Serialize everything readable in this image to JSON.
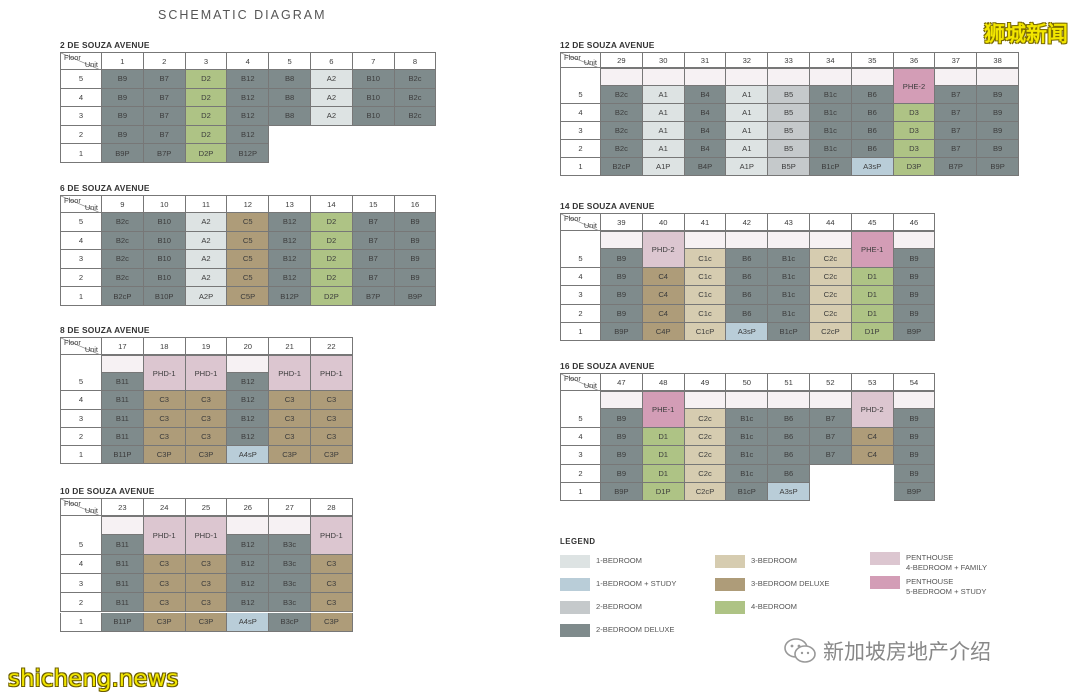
{
  "title": "SCHEMATIC DIAGRAM",
  "watermark_top": "狮城新闻",
  "watermark_bottom": "shicheng.news",
  "wechat_account": "新加坡房地产介绍",
  "corner": {
    "floor": "Floor",
    "unit": "Unit"
  },
  "colors": {
    "1br": "#dde3e3",
    "1brs": "#b9cdd8",
    "2br": "#c5c9cb",
    "2brd": "#7f8b8c",
    "3br": "#d6ccb0",
    "3brd": "#ae9c79",
    "4br": "#aec385",
    "phf": "#dcc6d0",
    "phs": "#d39db6"
  },
  "blocks": [
    {
      "name": "2 DE SOUZA AVENUE",
      "units": [
        "1",
        "2",
        "3",
        "4",
        "5",
        "6",
        "7",
        "8"
      ],
      "rows": [
        {
          "floor": "5",
          "cells": [
            "B9",
            "B7",
            "D2",
            "B12",
            "B8",
            "A2",
            "B10",
            "B2c"
          ]
        },
        {
          "floor": "4",
          "cells": [
            "B9",
            "B7",
            "D2",
            "B12",
            "B8",
            "A2",
            "B10",
            "B2c"
          ]
        },
        {
          "floor": "3",
          "cells": [
            "B9",
            "B7",
            "D2",
            "B12",
            "B8",
            "A2",
            "B10",
            "B2c"
          ]
        },
        {
          "floor": "2",
          "cells": [
            "B9",
            "B7",
            "D2",
            "B12",
            "",
            "",
            "",
            ""
          ]
        },
        {
          "floor": "1",
          "cells": [
            "B9P",
            "B7P",
            "D2P",
            "B12P",
            "",
            "",
            "",
            ""
          ]
        }
      ]
    },
    {
      "name": "6 DE SOUZA AVENUE",
      "units": [
        "9",
        "10",
        "11",
        "12",
        "13",
        "14",
        "15",
        "16"
      ],
      "rows": [
        {
          "floor": "5",
          "cells": [
            "B2c",
            "B10",
            "A2",
            "C5",
            "B12",
            "D2",
            "B7",
            "B9"
          ]
        },
        {
          "floor": "4",
          "cells": [
            "B2c",
            "B10",
            "A2",
            "C5",
            "B12",
            "D2",
            "B7",
            "B9"
          ]
        },
        {
          "floor": "3",
          "cells": [
            "B2c",
            "B10",
            "A2",
            "C5",
            "B12",
            "D2",
            "B7",
            "B9"
          ]
        },
        {
          "floor": "2",
          "cells": [
            "B2c",
            "B10",
            "A2",
            "C5",
            "B12",
            "D2",
            "B7",
            "B9"
          ]
        },
        {
          "floor": "1",
          "cells": [
            "B2cP",
            "B10P",
            "A2P",
            "C5P",
            "B12P",
            "D2P",
            "B7P",
            "B9P"
          ]
        }
      ]
    },
    {
      "name": "8 DE SOUZA AVENUE",
      "units": [
        "17",
        "18",
        "19",
        "20",
        "21",
        "22"
      ],
      "rows": [
        {
          "floor": "",
          "cells": [
            "",
            "PHD-1",
            "PHD-1",
            "",
            "PHD-1",
            "PHD-1"
          ]
        },
        {
          "floor": "5",
          "cells": [
            "B11",
            "",
            "",
            "B12",
            "",
            ""
          ]
        },
        {
          "floor": "4",
          "cells": [
            "B11",
            "C3",
            "C3",
            "B12",
            "C3",
            "C3"
          ]
        },
        {
          "floor": "3",
          "cells": [
            "B11",
            "C3",
            "C3",
            "B12",
            "C3",
            "C3"
          ]
        },
        {
          "floor": "2",
          "cells": [
            "B11",
            "C3",
            "C3",
            "B12",
            "C3",
            "C3"
          ]
        },
        {
          "floor": "1",
          "cells": [
            "B11P",
            "C3P",
            "C3P",
            "A4sP",
            "C3P",
            "C3P"
          ]
        }
      ]
    },
    {
      "name": "10 DE SOUZA AVENUE",
      "units": [
        "23",
        "24",
        "25",
        "26",
        "27",
        "28"
      ],
      "rows": [
        {
          "floor": "",
          "cells": [
            "",
            "PHD-1",
            "PHD-1",
            "",
            "",
            "PHD-1"
          ]
        },
        {
          "floor": "5",
          "cells": [
            "B11",
            "",
            "",
            "B12",
            "B3c",
            ""
          ]
        },
        {
          "floor": "4",
          "cells": [
            "B11",
            "C3",
            "C3",
            "B12",
            "B3c",
            "C3"
          ]
        },
        {
          "floor": "3",
          "cells": [
            "B11",
            "C3",
            "C3",
            "B12",
            "B3c",
            "C3"
          ]
        },
        {
          "floor": "2",
          "cells": [
            "B11",
            "C3",
            "C3",
            "B12",
            "B3c",
            "C3"
          ]
        },
        {
          "floor": "1",
          "cells": [
            "B11P",
            "C3P",
            "C3P",
            "A4sP",
            "B3cP",
            "C3P"
          ]
        }
      ]
    },
    {
      "name": "12 DE SOUZA AVENUE",
      "units": [
        "29",
        "30",
        "31",
        "32",
        "33",
        "34",
        "35",
        "36",
        "37",
        "38"
      ],
      "rows": [
        {
          "floor": "",
          "cells": [
            "",
            "",
            "",
            "",
            "",
            "",
            "",
            "PHE-2",
            "",
            ""
          ]
        },
        {
          "floor": "5",
          "cells": [
            "B2c",
            "A1",
            "B4",
            "A1",
            "B5",
            "B1c",
            "B6",
            "",
            "B7",
            "B9"
          ]
        },
        {
          "floor": "4",
          "cells": [
            "B2c",
            "A1",
            "B4",
            "A1",
            "B5",
            "B1c",
            "B6",
            "D3",
            "B7",
            "B9"
          ]
        },
        {
          "floor": "3",
          "cells": [
            "B2c",
            "A1",
            "B4",
            "A1",
            "B5",
            "B1c",
            "B6",
            "D3",
            "B7",
            "B9"
          ]
        },
        {
          "floor": "2",
          "cells": [
            "B2c",
            "A1",
            "B4",
            "A1",
            "B5",
            "B1c",
            "B6",
            "D3",
            "B7",
            "B9"
          ]
        },
        {
          "floor": "1",
          "cells": [
            "B2cP",
            "A1P",
            "B4P",
            "A1P",
            "B5P",
            "B1cP",
            "A3sP",
            "D3P",
            "B7P",
            "B9P"
          ]
        }
      ]
    },
    {
      "name": "14 DE SOUZA AVENUE",
      "units": [
        "39",
        "40",
        "41",
        "42",
        "43",
        "44",
        "45",
        "46"
      ],
      "rows": [
        {
          "floor": "",
          "cells": [
            "",
            "PHD-2",
            "",
            "",
            "",
            "",
            "PHE-1",
            ""
          ]
        },
        {
          "floor": "5",
          "cells": [
            "B9",
            "",
            "C1c",
            "B6",
            "B1c",
            "C2c",
            "",
            "B9"
          ]
        },
        {
          "floor": "4",
          "cells": [
            "B9",
            "C4",
            "C1c",
            "B6",
            "B1c",
            "C2c",
            "D1",
            "B9"
          ]
        },
        {
          "floor": "3",
          "cells": [
            "B9",
            "C4",
            "C1c",
            "B6",
            "B1c",
            "C2c",
            "D1",
            "B9"
          ]
        },
        {
          "floor": "2",
          "cells": [
            "B9",
            "C4",
            "C1c",
            "B6",
            "B1c",
            "C2c",
            "D1",
            "B9"
          ]
        },
        {
          "floor": "1",
          "cells": [
            "B9P",
            "C4P",
            "C1cP",
            "A3sP",
            "B1cP",
            "C2cP",
            "D1P",
            "B9P"
          ]
        }
      ]
    },
    {
      "name": "16 DE SOUZA AVENUE",
      "units": [
        "47",
        "48",
        "49",
        "50",
        "51",
        "52",
        "53",
        "54"
      ],
      "rows": [
        {
          "floor": "",
          "cells": [
            "",
            "PHE-1",
            "",
            "",
            "",
            "",
            "PHD-2",
            ""
          ]
        },
        {
          "floor": "5",
          "cells": [
            "B9",
            "",
            "C2c",
            "B1c",
            "B6",
            "B7",
            "",
            "B9"
          ]
        },
        {
          "floor": "4",
          "cells": [
            "B9",
            "D1",
            "C2c",
            "B1c",
            "B6",
            "B7",
            "C4",
            "B9"
          ]
        },
        {
          "floor": "3",
          "cells": [
            "B9",
            "D1",
            "C2c",
            "B1c",
            "B6",
            "B7",
            "C4",
            "B9"
          ]
        },
        {
          "floor": "2",
          "cells": [
            "B9",
            "D1",
            "C2c",
            "B1c",
            "B6",
            "",
            "",
            "B9"
          ]
        },
        {
          "floor": "1",
          "cells": [
            "B9P",
            "D1P",
            "C2cP",
            "B1cP",
            "A3sP",
            "",
            "",
            "B9P"
          ]
        }
      ]
    }
  ],
  "legend": {
    "title": "LEGEND",
    "items": [
      {
        "key": "1br",
        "label": "1-BEDROOM"
      },
      {
        "key": "1brs",
        "label": "1-BEDROOM + STUDY"
      },
      {
        "key": "2br",
        "label": "2-BEDROOM"
      },
      {
        "key": "2brd",
        "label": "2-BEDROOM DELUXE"
      },
      {
        "key": "3br",
        "label": "3-BEDROOM"
      },
      {
        "key": "3brd",
        "label": "3-BEDROOM DELUXE"
      },
      {
        "key": "4br",
        "label": "4-BEDROOM"
      },
      {
        "key": "phf",
        "label": "PENTHOUSE\n4-BEDROOM + FAMILY"
      },
      {
        "key": "phs",
        "label": "PENTHOUSE\n5-BEDROOM + STUDY"
      }
    ]
  }
}
